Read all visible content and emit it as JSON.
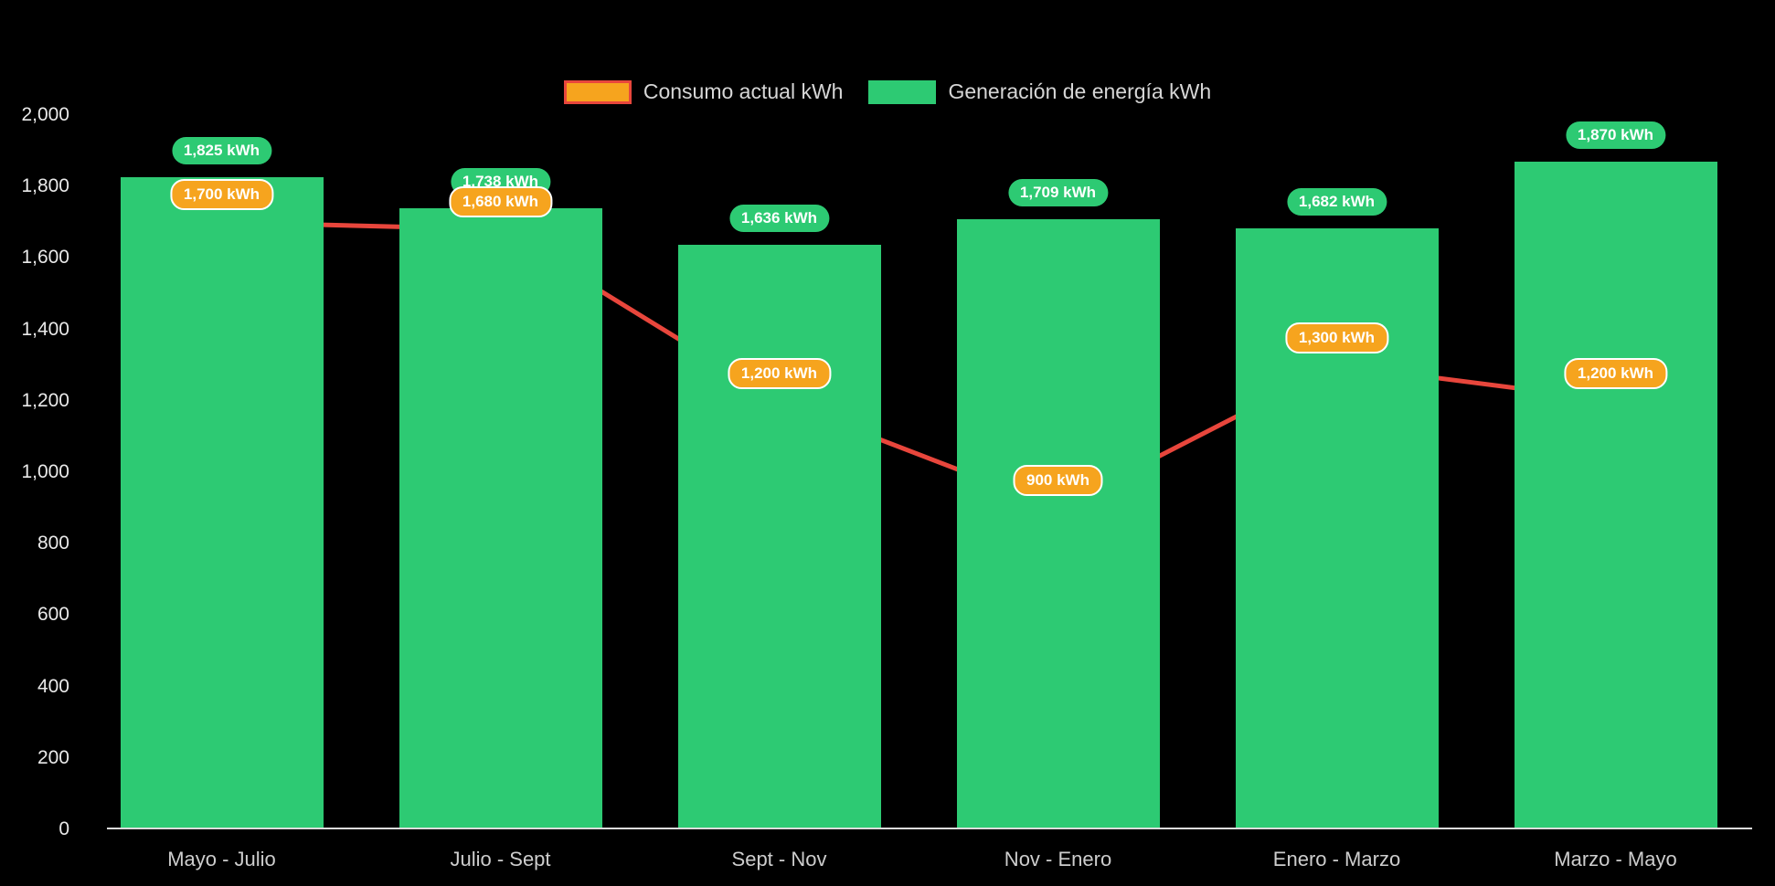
{
  "colors": {
    "background": "#000000",
    "bar_green": "#2dca73",
    "line_red": "#e8463c",
    "point_orange": "#f6a41e",
    "point_border": "#e78b18",
    "axis_line": "#dcdcdc"
  },
  "legend": {
    "consumo_label": "Consumo actual kWh",
    "generacion_label": "Generación de energía kWh"
  },
  "chart_data": {
    "type": "bar",
    "categories": [
      "Mayo - Julio",
      "Julio - Sept",
      "Sept - Nov",
      "Nov - Enero",
      "Enero - Marzo",
      "Marzo - Mayo"
    ],
    "series": [
      {
        "name": "Generación de energía kWh",
        "type": "bar",
        "color": "#2dca73",
        "values": [
          1825,
          1738,
          1636,
          1709,
          1682,
          1870
        ],
        "labels": [
          "1,825 kWh",
          "1.738 kWh",
          "1,636 kWh",
          "1,709 kWh",
          "1,682 kWh",
          "1,870 kWh"
        ]
      },
      {
        "name": "Consumo actual kWh",
        "type": "line",
        "color": "#e8463c",
        "point_color": "#f6a41e",
        "values": [
          1700,
          1680,
          1200,
          900,
          1300,
          1200
        ],
        "labels": [
          "1,700 kWh",
          "1,680 kWh",
          "1,200 kWh",
          "900 kWh",
          "1,300 kWh",
          "1,200 kWh"
        ]
      }
    ],
    "yticks": [
      0,
      200,
      400,
      600,
      800,
      1000,
      1200,
      1400,
      1600,
      1800,
      2000
    ],
    "ytick_labels": [
      "0",
      "200",
      "400",
      "600",
      "800",
      "1,000",
      "1,200",
      "1,400",
      "1,600",
      "1,800",
      "2,000"
    ],
    "ylim": [
      0,
      2000
    ],
    "grid": false,
    "legend_position": "top"
  }
}
